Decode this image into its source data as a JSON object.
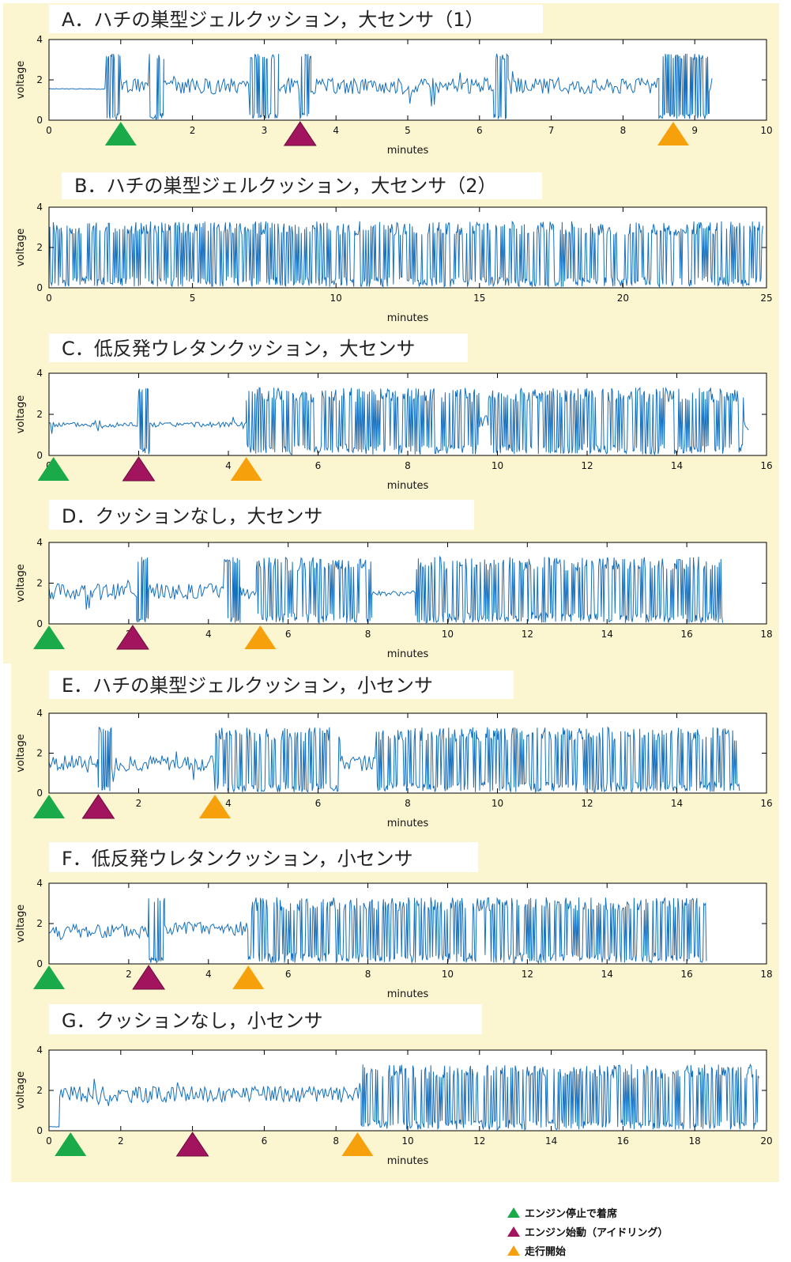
{
  "colors": {
    "signal": "#1570bd",
    "engine_stop_seat": "#1aaa4a",
    "engine_start_idle": "#a3145e",
    "driving_start": "#f6a10c",
    "background": "#fbf6cf"
  },
  "legend": [
    {
      "label": "エンジン停止で着席",
      "color": "#1aaa4a"
    },
    {
      "label": "エンジン始動（アイドリング）",
      "color": "#a3145e"
    },
    {
      "label": "走行開始",
      "color": "#f6a10c"
    }
  ],
  "chart_data": [
    {
      "type": "line",
      "title": "A．ハチの巣型ジェルクッション，大センサ（1）",
      "xlabel": "minutes",
      "ylabel": "voltage",
      "xlim": [
        0,
        10
      ],
      "ylim": [
        0,
        4
      ],
      "xticks": [
        0,
        1,
        2,
        3,
        4,
        5,
        6,
        7,
        8,
        9,
        10
      ],
      "yticks": [
        0,
        2,
        4
      ],
      "signal_end": 9.25,
      "segments": [
        [
          0,
          0.8,
          "flat",
          1.55
        ],
        [
          0.8,
          1.0,
          "burst",
          1.7
        ],
        [
          1.0,
          1.4,
          "medium",
          1.7
        ],
        [
          1.4,
          1.6,
          "burst",
          1.7
        ],
        [
          1.6,
          2.8,
          "medium",
          1.7
        ],
        [
          2.8,
          3.2,
          "burst",
          1.7
        ],
        [
          3.2,
          3.5,
          "medium",
          1.7
        ],
        [
          3.5,
          3.65,
          "burst",
          1.7
        ],
        [
          3.65,
          6.2,
          "medium",
          1.7
        ],
        [
          6.2,
          6.4,
          "burst",
          1.7
        ],
        [
          6.4,
          8.5,
          "medium",
          1.7
        ],
        [
          8.5,
          9.2,
          "burst",
          1.7
        ],
        [
          9.2,
          9.25,
          "medium",
          1.7
        ]
      ],
      "markers": [
        {
          "event": "engine_stop_seat",
          "x": 1.0
        },
        {
          "event": "engine_start_idle",
          "x": 3.5
        },
        {
          "event": "driving_start",
          "x": 8.7
        }
      ]
    },
    {
      "type": "line",
      "title": "B．ハチの巣型ジェルクッション，大センサ（2）",
      "xlabel": "minutes",
      "ylabel": "voltage",
      "xlim": [
        0,
        25
      ],
      "ylim": [
        0,
        4
      ],
      "xticks": [
        0,
        5,
        10,
        15,
        20,
        25
      ],
      "yticks": [
        0,
        2,
        4
      ],
      "signal_end": 24.9,
      "segments": [
        [
          0,
          24.9,
          "dense",
          1.65
        ]
      ],
      "markers": []
    },
    {
      "type": "line",
      "title": "C．低反発ウレタンクッション，大センサ",
      "xlabel": "minutes",
      "ylabel": "voltage",
      "xlim": [
        0,
        16
      ],
      "ylim": [
        0,
        4
      ],
      "xticks": [
        0,
        2,
        4,
        6,
        8,
        10,
        12,
        14,
        16
      ],
      "yticks": [
        0,
        2,
        4
      ],
      "signal_end": 15.6,
      "segments": [
        [
          0,
          1.0,
          "quiet",
          1.5
        ],
        [
          1.0,
          1.2,
          "medium",
          1.5
        ],
        [
          1.2,
          2.0,
          "quiet",
          1.5
        ],
        [
          2.0,
          2.25,
          "burst",
          1.6
        ],
        [
          2.25,
          4.4,
          "quiet",
          1.5
        ],
        [
          4.4,
          9.6,
          "dense",
          1.65
        ],
        [
          9.6,
          9.8,
          "medium",
          1.6
        ],
        [
          9.8,
          15.5,
          "dense",
          1.65
        ],
        [
          15.5,
          15.6,
          "medium",
          1.6
        ]
      ],
      "markers": [
        {
          "event": "engine_stop_seat",
          "x": 0.1
        },
        {
          "event": "engine_start_idle",
          "x": 2.0
        },
        {
          "event": "driving_start",
          "x": 4.4
        }
      ]
    },
    {
      "type": "line",
      "title": "D．クッションなし，大センサ",
      "xlabel": "minutes",
      "ylabel": "voltage",
      "xlim": [
        0,
        18
      ],
      "ylim": [
        0,
        4
      ],
      "xticks": [
        0,
        2,
        4,
        6,
        8,
        10,
        12,
        14,
        16,
        18
      ],
      "yticks": [
        0,
        2,
        4
      ],
      "signal_end": 16.9,
      "segments": [
        [
          0,
          2.2,
          "medium",
          1.6
        ],
        [
          2.2,
          2.5,
          "burst",
          1.6
        ],
        [
          2.5,
          4.4,
          "medium",
          1.6
        ],
        [
          4.4,
          4.8,
          "burst",
          1.6
        ],
        [
          4.8,
          5.2,
          "medium",
          1.6
        ],
        [
          5.2,
          8.1,
          "dense",
          1.65
        ],
        [
          8.1,
          9.2,
          "quiet",
          1.5
        ],
        [
          9.2,
          11.5,
          "dense",
          1.65
        ],
        [
          11.5,
          16.9,
          "dense",
          1.65
        ]
      ],
      "markers": [
        {
          "event": "engine_stop_seat",
          "x": 0.0
        },
        {
          "event": "engine_start_idle",
          "x": 2.1
        },
        {
          "event": "driving_start",
          "x": 5.3
        }
      ]
    },
    {
      "type": "line",
      "title": "E．ハチの巣型ジェルクッション，小センサ",
      "xlabel": "minutes",
      "ylabel": "voltage",
      "xlim": [
        0,
        16
      ],
      "ylim": [
        0,
        4
      ],
      "xticks": [
        0,
        2,
        4,
        6,
        8,
        10,
        12,
        14,
        16
      ],
      "yticks": [
        0,
        2,
        4
      ],
      "signal_end": 15.4,
      "segments": [
        [
          0,
          1.1,
          "medium",
          1.5
        ],
        [
          1.1,
          1.4,
          "burst",
          1.5
        ],
        [
          1.4,
          3.7,
          "medium",
          1.5
        ],
        [
          3.7,
          6.5,
          "dense",
          1.65
        ],
        [
          6.5,
          7.3,
          "medium",
          1.5
        ],
        [
          7.3,
          10.6,
          "dense",
          1.65
        ],
        [
          10.6,
          15.4,
          "dense",
          1.65
        ]
      ],
      "markers": [
        {
          "event": "engine_stop_seat",
          "x": 0.0
        },
        {
          "event": "engine_start_idle",
          "x": 1.1
        },
        {
          "event": "driving_start",
          "x": 3.7
        }
      ]
    },
    {
      "type": "line",
      "title": "F．低反発ウレタンクッション，小センサ",
      "xlabel": "minutes",
      "ylabel": "voltage",
      "xlim": [
        0,
        18
      ],
      "ylim": [
        0,
        4
      ],
      "xticks": [
        0,
        2,
        4,
        6,
        8,
        10,
        12,
        14,
        16,
        18
      ],
      "yticks": [
        0,
        2,
        4
      ],
      "signal_end": 16.5,
      "segments": [
        [
          0,
          2.5,
          "medium",
          1.6
        ],
        [
          2.5,
          2.9,
          "burst",
          1.7
        ],
        [
          2.9,
          5.0,
          "medium",
          1.7
        ],
        [
          5.0,
          16.5,
          "dense",
          1.65
        ]
      ],
      "markers": [
        {
          "event": "engine_stop_seat",
          "x": 0.0
        },
        {
          "event": "engine_start_idle",
          "x": 2.5
        },
        {
          "event": "driving_start",
          "x": 5.0
        }
      ]
    },
    {
      "type": "line",
      "title": "G．クッションなし，小センサ",
      "xlabel": "minutes",
      "ylabel": "voltage",
      "xlim": [
        0,
        20
      ],
      "ylim": [
        0,
        4
      ],
      "xticks": [
        0,
        2,
        4,
        6,
        8,
        10,
        12,
        14,
        16,
        18,
        20
      ],
      "yticks": [
        0,
        2,
        4
      ],
      "signal_end": 19.8,
      "segments": [
        [
          0,
          0.3,
          "flat",
          0.2
        ],
        [
          0.3,
          8.7,
          "medium",
          1.8
        ],
        [
          8.7,
          19.8,
          "dense",
          1.65
        ]
      ],
      "markers": [
        {
          "event": "engine_stop_seat",
          "x": 0.6
        },
        {
          "event": "engine_start_idle",
          "x": 4.0
        },
        {
          "event": "driving_start",
          "x": 8.6
        }
      ]
    }
  ]
}
